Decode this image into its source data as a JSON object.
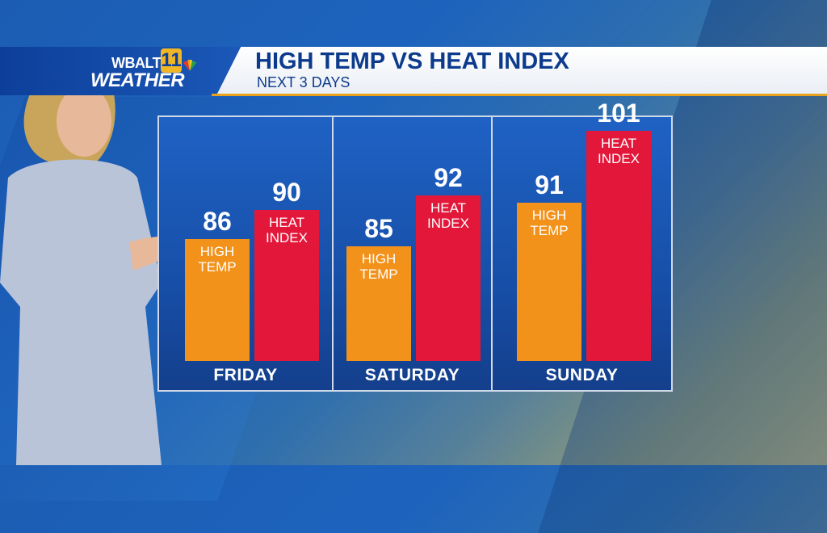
{
  "header": {
    "logo_top": "WBALTV",
    "logo_number": "11",
    "logo_bottom": "WEATHER",
    "title": "HIGH TEMP VS HEAT INDEX",
    "subtitle": "NEXT 3 DAYS"
  },
  "colors": {
    "high_temp": "#f3921b",
    "heat_index": "#e2173a",
    "panel": "#1f62c4",
    "title_text": "#0c3a8c"
  },
  "chart_data": {
    "type": "bar",
    "title": "HIGH TEMP VS HEAT INDEX",
    "subtitle": "NEXT 3 DAYS",
    "categories": [
      "FRIDAY",
      "SATURDAY",
      "SUNDAY"
    ],
    "series": [
      {
        "name": "HIGH TEMP",
        "label": "HIGH\nTEMP",
        "values": [
          86,
          85,
          91
        ]
      },
      {
        "name": "HEAT INDEX",
        "label": "HEAT\nINDEX",
        "values": [
          90,
          92,
          101
        ]
      }
    ]
  }
}
